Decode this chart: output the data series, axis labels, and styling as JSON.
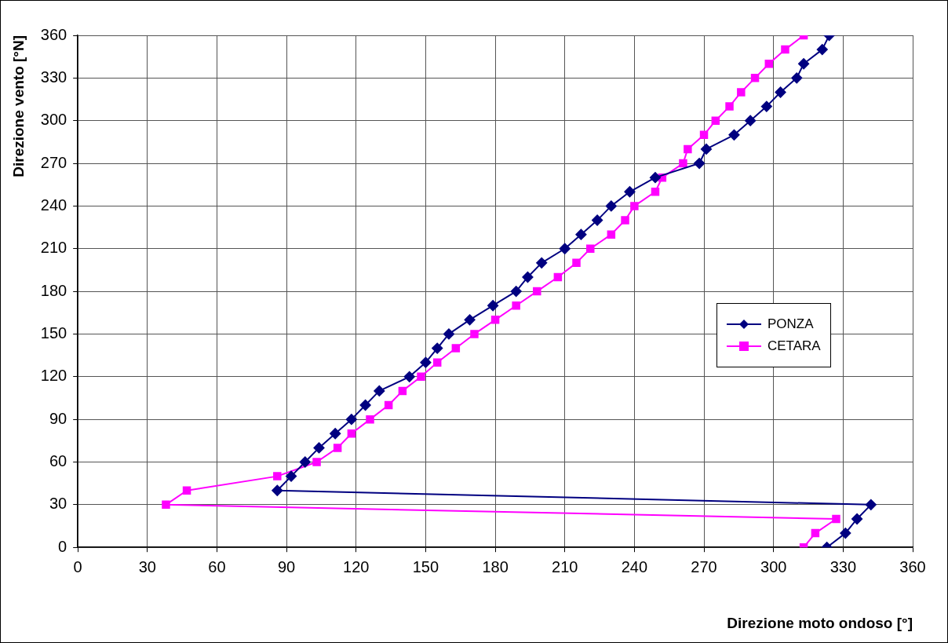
{
  "chart_data": {
    "type": "line",
    "xlabel": "Direzione moto ondoso [°]",
    "ylabel": "Direzione vento [°N]",
    "xlim": [
      0,
      360
    ],
    "xticks": [
      0,
      30,
      60,
      90,
      120,
      150,
      180,
      210,
      240,
      270,
      300,
      330,
      360
    ],
    "ylim": [
      0,
      360
    ],
    "yticks": [
      0,
      30,
      60,
      90,
      120,
      150,
      180,
      210,
      240,
      270,
      300,
      330,
      360
    ],
    "grid": true,
    "legend": "right",
    "line_style": "solid",
    "series": [
      {
        "name": "PONZA",
        "color": "#000080",
        "marker": "diamond",
        "x": [
          323,
          331,
          336,
          342,
          86,
          92,
          98,
          104,
          111,
          118,
          124,
          130,
          143,
          150,
          155,
          160,
          169,
          179,
          189,
          194,
          200,
          210,
          217,
          224,
          230,
          238,
          249,
          268,
          271,
          283,
          290,
          297,
          303,
          310,
          313,
          321,
          324
        ],
        "values": [
          0,
          10,
          20,
          30,
          40,
          50,
          60,
          70,
          80,
          90,
          100,
          110,
          120,
          130,
          140,
          150,
          160,
          170,
          180,
          190,
          200,
          210,
          220,
          230,
          240,
          250,
          260,
          270,
          280,
          290,
          300,
          310,
          320,
          330,
          340,
          350,
          360
        ]
      },
      {
        "name": "CETARA",
        "color": "#ff00ff",
        "marker": "square",
        "x": [
          313,
          318,
          327,
          38,
          47,
          86,
          103,
          112,
          118,
          126,
          134,
          140,
          148,
          155,
          163,
          171,
          180,
          189,
          198,
          207,
          215,
          221,
          230,
          236,
          240,
          249,
          252,
          261,
          263,
          270,
          275,
          281,
          286,
          292,
          298,
          305,
          313
        ],
        "values": [
          0,
          10,
          20,
          30,
          40,
          50,
          60,
          70,
          80,
          90,
          100,
          110,
          120,
          130,
          140,
          150,
          160,
          170,
          180,
          190,
          200,
          210,
          220,
          230,
          240,
          250,
          260,
          270,
          280,
          290,
          300,
          310,
          320,
          330,
          340,
          350,
          360
        ]
      }
    ]
  }
}
